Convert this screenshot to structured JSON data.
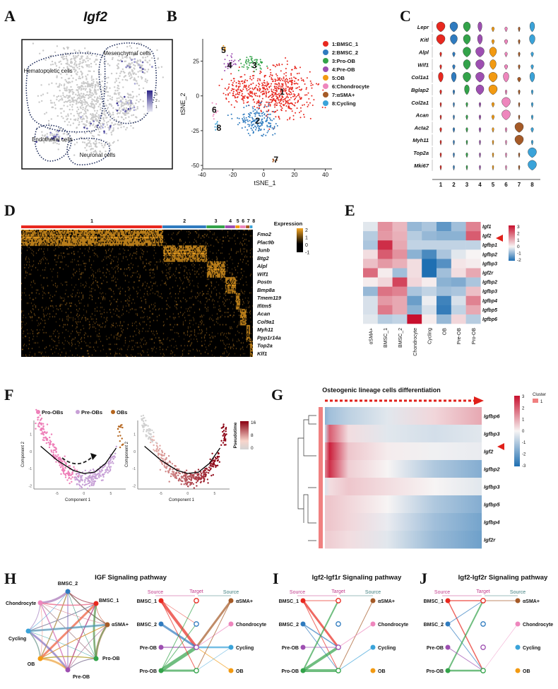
{
  "panel_labels": [
    "A",
    "B",
    "C",
    "D",
    "E",
    "F",
    "G",
    "H",
    "I",
    "J"
  ],
  "colors": {
    "clusters": [
      "#e8281f",
      "#2f7bbf",
      "#33a34a",
      "#9d4fb1",
      "#f29a12",
      "#ee86bd",
      "#a55a27",
      "#3aa3d9"
    ],
    "heat_high": "#c8102e",
    "heat_low": "#1f6fb2",
    "expr_high": "#f5a623",
    "expr_low": "#000000"
  },
  "chart_data": [
    {
      "panel": "A",
      "type": "scatter",
      "title": "Igf2",
      "regions": [
        "Mesenchymal cells",
        "Hematopoietic cells",
        "Endothelial cells",
        "Neuronal cells"
      ],
      "colorbar": {
        "ticks": [
          "3",
          "2",
          "1"
        ],
        "low": "#e8e8f4",
        "high": "#2b2387"
      }
    },
    {
      "panel": "B",
      "type": "scatter",
      "xlabel": "tSNE_1",
      "ylabel": "tSNE_2",
      "xlim": [
        -45,
        42
      ],
      "ylim": [
        -52,
        40
      ],
      "xticks": [
        "-40",
        "-20",
        "0",
        "20",
        "40"
      ],
      "yticks": [
        "-50",
        "-25",
        "0",
        "25"
      ],
      "legend": [
        "1:BMSC_1",
        "2:BMSC_2",
        "3:Pro-OB",
        "4:Pre-OB",
        "5:OB",
        "6:Chondrocyte",
        "7:αSMA+",
        "8:Cycling"
      ],
      "legend_position": "right",
      "clusters": [
        {
          "label": "1",
          "center": [
            12,
            3
          ]
        },
        {
          "label": "2",
          "center": [
            -4,
            -18
          ]
        },
        {
          "label": "3",
          "center": [
            -6,
            22
          ]
        },
        {
          "label": "4",
          "center": [
            -22,
            22
          ]
        },
        {
          "label": "5",
          "center": [
            -26,
            33
          ]
        },
        {
          "label": "6",
          "center": [
            -32,
            -10
          ]
        },
        {
          "label": "7",
          "center": [
            8,
            -46
          ]
        },
        {
          "label": "8",
          "center": [
            -29,
            -23
          ]
        }
      ]
    },
    {
      "panel": "C",
      "type": "violin",
      "genes": [
        "Lepr",
        "Kitl",
        "Alpl",
        "Wif1",
        "Col1a1",
        "Bglap2",
        "Col2a1",
        "Acan",
        "Acta2",
        "Myh11",
        "Top2a",
        "Mki67"
      ],
      "categories": [
        "1",
        "2",
        "3",
        "4",
        "5",
        "6",
        "7",
        "8"
      ],
      "relative_expression": [
        [
          1,
          0.9,
          0.8,
          0.4,
          0.2,
          0.2,
          0.1,
          0.5
        ],
        [
          1,
          0.8,
          0.8,
          0.5,
          0.2,
          0.3,
          0.1,
          0.6
        ],
        [
          0.1,
          0.2,
          0.9,
          1,
          0.8,
          0.2,
          0.1,
          0.2
        ],
        [
          0.1,
          0.2,
          0.8,
          1,
          0.7,
          0.3,
          0.1,
          0.2
        ],
        [
          0.5,
          0.5,
          0.9,
          1,
          1,
          0.6,
          0.3,
          0.5
        ],
        [
          0.1,
          0.1,
          0.5,
          0.9,
          1,
          0.1,
          0.1,
          0.1
        ],
        [
          0.05,
          0.05,
          0.1,
          0.1,
          0.2,
          1,
          0.05,
          0.1
        ],
        [
          0.05,
          0.05,
          0.1,
          0.1,
          0.2,
          1,
          0.05,
          0.1
        ],
        [
          0.1,
          0.1,
          0.1,
          0.1,
          0.1,
          0.1,
          1,
          0.2
        ],
        [
          0.05,
          0.05,
          0.05,
          0.05,
          0.05,
          0.05,
          1,
          0.1
        ],
        [
          0.05,
          0.05,
          0.1,
          0.05,
          0.05,
          0.05,
          0.05,
          1
        ],
        [
          0.05,
          0.05,
          0.05,
          0.05,
          0.05,
          0.05,
          0.05,
          1
        ]
      ]
    },
    {
      "panel": "D",
      "type": "heatmap",
      "categories": [
        "1",
        "2",
        "3",
        "4",
        "5",
        "6",
        "7",
        "8"
      ],
      "category_share": [
        0.61,
        0.19,
        0.08,
        0.045,
        0.02,
        0.025,
        0.017,
        0.013
      ],
      "genes": [
        "Fmo2",
        "Plac9b",
        "Junb",
        "Btg2",
        "Alpl",
        "Wif1",
        "Postn",
        "Bmp8a",
        "Tmem119",
        "Ifitm5",
        "Acan",
        "Col9a1",
        "Myh11",
        "Ppp1r14a",
        "Top2a",
        "Klf1"
      ],
      "marker_cluster": [
        1,
        1,
        2,
        2,
        3,
        3,
        4,
        4,
        5,
        5,
        6,
        6,
        7,
        7,
        8,
        8
      ],
      "legend_title": "Expression",
      "colorbar_ticks": [
        "2",
        "1",
        "0",
        "-1"
      ],
      "range": [
        -1,
        2
      ]
    },
    {
      "panel": "E",
      "type": "heatmap",
      "categories": [
        "αSMA+",
        "BMSC_1",
        "BMSC_2",
        "Chondrocyte",
        "Cycling",
        "OB",
        "Pre-OB",
        "Pro-OB"
      ],
      "genes": [
        "Igf1",
        "Igf2",
        "Igfbp1",
        "Igfbp2",
        "Igfbp3",
        "Igf2r",
        "Igfbp2",
        "Igfbp3",
        "Igfbp4",
        "Igfbp5",
        "Igfbp6"
      ],
      "highlight_gene": "Igf2",
      "values": [
        [
          -0.2,
          1.3,
          0.8,
          -0.9,
          -0.7,
          -1.4,
          -0.8,
          1.5
        ],
        [
          -0.6,
          1.2,
          0.9,
          -0.6,
          -0.9,
          -1.0,
          -1.0,
          2.0
        ],
        [
          -0.7,
          2.6,
          1.0,
          -0.5,
          -0.5,
          -0.5,
          -0.5,
          -0.5
        ],
        [
          0.3,
          2.0,
          1.3,
          -1.0,
          -1.6,
          -0.7,
          -0.2,
          0.0
        ],
        [
          0.7,
          1.2,
          0.9,
          0.3,
          -2.2,
          -1.5,
          0.2,
          0.1
        ],
        [
          1.8,
          0.1,
          -0.8,
          0.3,
          -2.0,
          -0.8,
          0.3,
          1.0
        ],
        [
          0.1,
          0.4,
          2.3,
          0.4,
          0.1,
          -1.0,
          -1.1,
          -0.7
        ],
        [
          -0.9,
          1.7,
          1.5,
          -0.7,
          -0.5,
          -0.8,
          -0.7,
          0.7
        ],
        [
          -0.3,
          1.2,
          1.0,
          -1.3,
          -0.1,
          -1.7,
          -0.3,
          1.5
        ],
        [
          -0.3,
          1.6,
          1.0,
          -1.0,
          -0.3,
          -1.8,
          -0.5,
          1.0
        ],
        [
          -0.2,
          -0.6,
          -0.5,
          3.0,
          0.1,
          -0.9,
          0.4,
          -0.6
        ]
      ],
      "colorbar_ticks": [
        "3",
        "2",
        "1",
        "0",
        "-1",
        "-2"
      ],
      "range": [
        -2,
        3
      ]
    },
    {
      "panel": "F",
      "type": "scatter",
      "legend": [
        "Pro-OBs",
        "Pre-OBs",
        "OBs"
      ],
      "legend_colors": [
        "#ee7fb8",
        "#c7a0d6",
        "#b5651d"
      ],
      "legend_position": "top",
      "xlabel": "Component 1",
      "ylabel": "Component 2",
      "xticks": [
        "-5",
        "0",
        "5"
      ],
      "yticks": [
        "1",
        "0",
        "-1",
        "-2"
      ],
      "xlim": [
        -9,
        7.5
      ],
      "ylim": [
        -2.1,
        1.8
      ],
      "trajectory": [
        [
          -8,
          0.3
        ],
        [
          -5,
          -0.5
        ],
        [
          -2,
          -1.1
        ],
        [
          0,
          -1.28
        ],
        [
          2,
          -1.2
        ],
        [
          4,
          -0.7
        ],
        [
          6,
          0.2
        ]
      ],
      "colorbar_title": "Pseudotime",
      "colorbar_ticks": [
        "16",
        "8",
        "0"
      ],
      "pseudotime_range": [
        0,
        16
      ]
    },
    {
      "panel": "G",
      "type": "heatmap",
      "title": "Osteogenic lineage cells differentiation",
      "genes": [
        "Igfbp6",
        "Igfbp3",
        "Igf2",
        "Igfbp2",
        "Igfbp3",
        "Igfbp5",
        "Igfbp4",
        "Igf2r"
      ],
      "highlight_gene": "Igf2",
      "pseudotime_fraction": [
        0,
        0.03,
        0.15,
        0.4,
        0.7,
        1
      ],
      "values": [
        [
          -1.5,
          -1.2,
          -0.8,
          -0.3,
          0.4,
          1.0
        ],
        [
          -0.6,
          2.0,
          0.3,
          -0.3,
          -0.5,
          -0.3
        ],
        [
          1.0,
          2.8,
          0.6,
          0.1,
          -0.1,
          -0.2
        ],
        [
          1.5,
          2.6,
          0.5,
          0.0,
          -1.0,
          -1.6
        ],
        [
          -0.4,
          0.3,
          0.6,
          0.3,
          0.0,
          -0.3
        ],
        [
          0.6,
          0.6,
          0.4,
          0.0,
          -1.0,
          -1.6
        ],
        [
          0.6,
          0.6,
          0.4,
          -0.2,
          -1.2,
          -1.8
        ],
        [
          0.5,
          0.5,
          0.3,
          -0.3,
          -1.3,
          -1.9
        ]
      ],
      "colorbar_ticks": [
        "3",
        "2",
        "1",
        "0",
        "-1",
        "-2",
        "-3"
      ],
      "range": [
        -3,
        3
      ],
      "cluster_legend_title": "Cluster",
      "cluster_legend_items": [
        "1"
      ]
    },
    {
      "panel": "H",
      "type": "network",
      "title": "IGF Signaling pathway",
      "nodes": [
        "BMSC_2",
        "BMSC_1",
        "αSMA+",
        "Pro-OB",
        "Pre-OB",
        "OB",
        "Cycling",
        "Chondrocyte"
      ],
      "hierarchy": {
        "source_label": "Source",
        "target_label": "Target",
        "left": [
          "BMSC_1",
          "BMSC_2",
          "Pre-OB",
          "Pro-OB"
        ],
        "right": [
          "αSMA+",
          "Chondrocyte",
          "Cycling",
          "OB"
        ],
        "edges": [
          [
            "BMSC_1",
            2,
            4
          ],
          [
            "BMSC_2",
            2,
            3
          ],
          [
            "Pro-OB",
            2,
            5
          ],
          [
            "Pro-OB",
            3,
            3
          ],
          [
            "Pre-OB",
            2,
            1.5
          ],
          [
            "αSMA+",
            2,
            3
          ],
          [
            "Cycling",
            2,
            2.5
          ],
          [
            "Chondrocyte",
            2,
            1
          ],
          [
            "OB",
            2,
            1
          ],
          [
            "BMSC_1",
            3,
            1
          ],
          [
            "Pro-OB",
            0,
            1
          ],
          [
            "Pro-OB",
            1,
            1
          ],
          [
            "BMSC_1",
            1,
            0.6
          ],
          [
            "αSMA+",
            3,
            1
          ],
          [
            "Cycling",
            3,
            0.6
          ]
        ]
      }
    },
    {
      "panel": "I",
      "type": "network",
      "title": "Igf2-Igf1r Signaling pathway",
      "hierarchy": {
        "source_label": "Source",
        "target_label": "Target",
        "left": [
          "BMSC_1",
          "BMSC_2",
          "Pre-OB",
          "Pro-OB"
        ],
        "right": [
          "αSMA+",
          "Chondrocyte",
          "Cycling",
          "OB"
        ],
        "edges": [
          [
            "BMSC_1",
            0,
            1
          ],
          [
            "BMSC_1",
            2,
            3
          ],
          [
            "BMSC_1",
            3,
            1
          ],
          [
            "BMSC_2",
            2,
            1.5
          ],
          [
            "BMSC_2",
            3,
            1
          ],
          [
            "Pro-OB",
            0,
            2
          ],
          [
            "Pro-OB",
            2,
            4
          ],
          [
            "Pro-OB",
            3,
            4
          ],
          [
            "Pre-OB",
            2,
            1
          ],
          [
            "αSMA+",
            3,
            1
          ],
          [
            "Chondrocyte",
            2,
            1
          ],
          [
            "Cycling",
            3,
            1
          ]
        ]
      }
    },
    {
      "panel": "J",
      "type": "network",
      "title": "Igf2-Igf2r Signaling pathway",
      "hierarchy": {
        "source_label": "Source",
        "target_label": "Target",
        "left": [
          "BMSC_1",
          "BMSC_2",
          "Pre-OB",
          "Pro-OB"
        ],
        "right": [
          "αSMA+",
          "Chondrocyte",
          "Cycling",
          "OB"
        ],
        "edges": [
          [
            "BMSC_1",
            0,
            1.5
          ],
          [
            "BMSC_1",
            3,
            1.5
          ],
          [
            "BMSC_2",
            0,
            1
          ],
          [
            "BMSC_2",
            3,
            1
          ],
          [
            "Pro-OB",
            0,
            2
          ],
          [
            "Pro-OB",
            3,
            2.5
          ],
          [
            "Pre-OB",
            3,
            1
          ],
          [
            "αSMA+",
            0,
            1
          ],
          [
            "Chondrocyte",
            3,
            0.6
          ]
        ]
      }
    }
  ]
}
